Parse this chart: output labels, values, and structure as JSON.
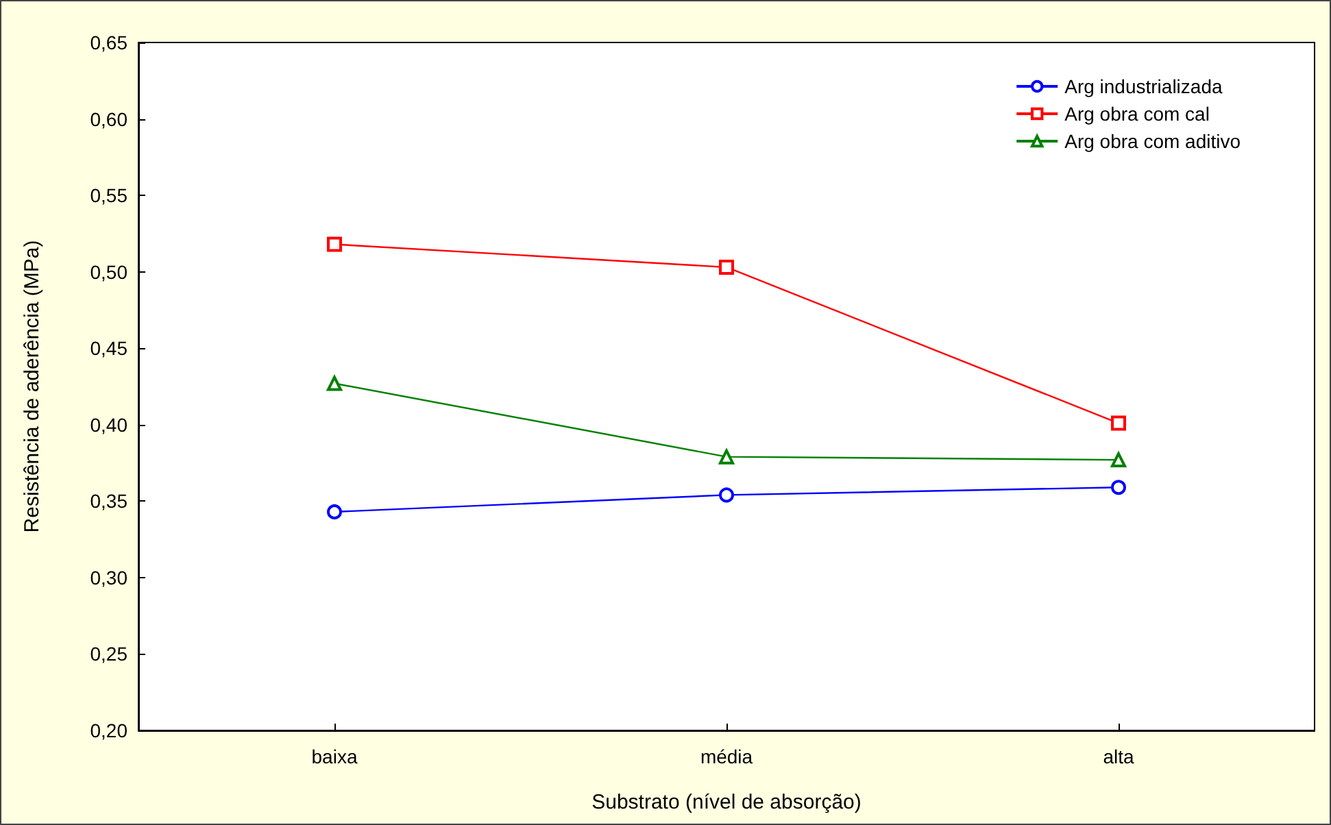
{
  "chart_data": {
    "type": "line",
    "xlabel": "Substrato (nível de absorção)",
    "ylabel": "Resistência de aderência (MPa)",
    "categories": [
      "baixa",
      "média",
      "alta"
    ],
    "series": [
      {
        "name": "Arg industrializada",
        "color": "#0000ff",
        "marker": "circle",
        "values": [
          0.343,
          0.354,
          0.359
        ]
      },
      {
        "name": "Arg obra com cal",
        "color": "#ff0000",
        "marker": "square",
        "values": [
          0.518,
          0.503,
          0.401
        ]
      },
      {
        "name": "Arg obra com aditivo",
        "color": "#008000",
        "marker": "triangle",
        "values": [
          0.427,
          0.379,
          0.377
        ]
      }
    ],
    "ylim": [
      0.2,
      0.65
    ],
    "yticks": [
      {
        "value": 0.2,
        "label": "0,20"
      },
      {
        "value": 0.25,
        "label": "0,25"
      },
      {
        "value": 0.3,
        "label": "0,30"
      },
      {
        "value": 0.35,
        "label": "0,35"
      },
      {
        "value": 0.4,
        "label": "0,40"
      },
      {
        "value": 0.45,
        "label": "0,45"
      },
      {
        "value": 0.5,
        "label": "0,50"
      },
      {
        "value": 0.55,
        "label": "0,55"
      },
      {
        "value": 0.6,
        "label": "0,60"
      },
      {
        "value": 0.65,
        "label": "0,65"
      }
    ],
    "grid": false,
    "legend": "top right",
    "line_style": "solid"
  }
}
